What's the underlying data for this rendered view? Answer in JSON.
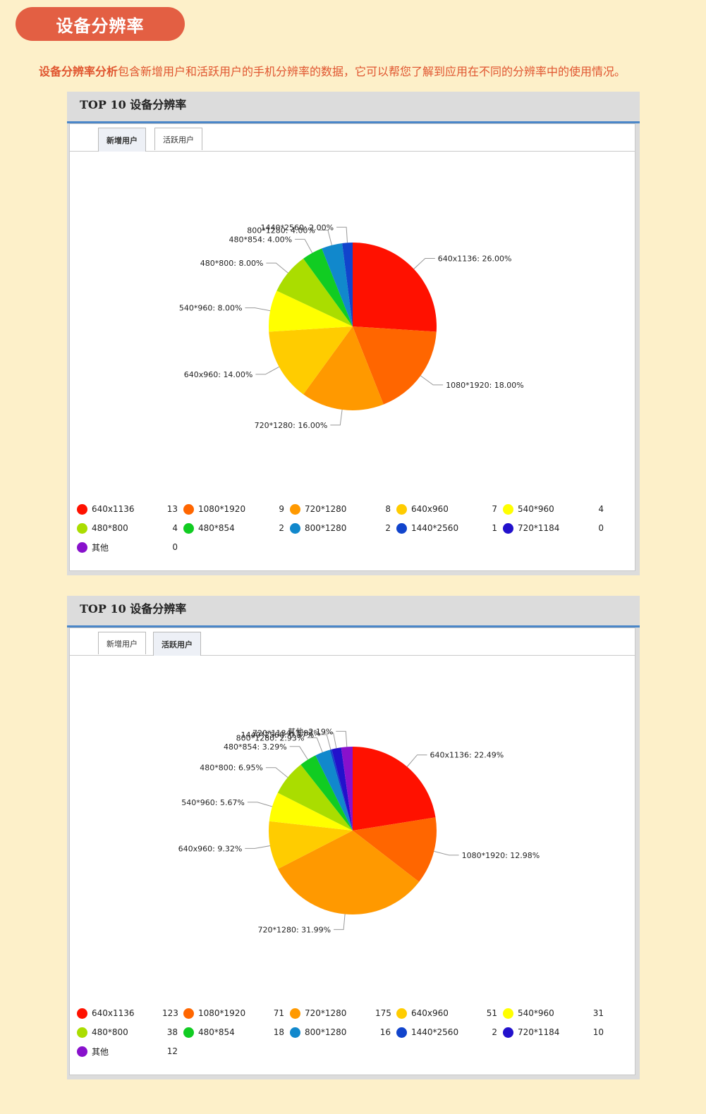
{
  "header": {
    "title": "设备分辨率"
  },
  "intro": {
    "highlight": "设备分辨率分析",
    "text": "包含新增用户和活跃用户的手机分辨率的数据，它可以帮您了解到应用在不同的分辨率中的使用情况。"
  },
  "colors": [
    "#ff1100",
    "#ff6600",
    "#ff9900",
    "#ffcc00",
    "#ffff00",
    "#aadd00",
    "#11cc22",
    "#1188cc",
    "#1144cc",
    "#2211cc",
    "#8811cc"
  ],
  "panels": [
    {
      "title": "TOP 10 设备分辨率",
      "tabs": [
        {
          "label": "新增用户",
          "active": true
        },
        {
          "label": "活跃用户",
          "active": false
        }
      ]
    },
    {
      "title": "TOP 10 设备分辨率",
      "tabs": [
        {
          "label": "新增用户",
          "active": false
        },
        {
          "label": "活跃用户",
          "active": true
        }
      ]
    }
  ],
  "chart_data": [
    {
      "type": "pie",
      "title": "",
      "slices": [
        {
          "name": "640x1136",
          "count": "13",
          "percent": 26.0,
          "label": "640x1136: 26.00%"
        },
        {
          "name": "1080*1920",
          "count": "9",
          "percent": 18.0,
          "label": "1080*1920: 18.00%"
        },
        {
          "name": "720*1280",
          "count": "8",
          "percent": 16.0,
          "label": "720*1280: 16.00%"
        },
        {
          "name": "640x960",
          "count": "7",
          "percent": 14.0,
          "label": "640x960: 14.00%"
        },
        {
          "name": "540*960",
          "count": "4",
          "percent": 8.0,
          "label": "540*960: 8.00%"
        },
        {
          "name": "480*800",
          "count": "4",
          "percent": 8.0,
          "label": "480*800: 8.00%"
        },
        {
          "name": "480*854",
          "count": "2",
          "percent": 4.0,
          "label": "480*854: 4.00%"
        },
        {
          "name": "800*1280",
          "count": "2",
          "percent": 4.0,
          "label": "800*1280: 4.00%"
        },
        {
          "name": "1440*2560",
          "count": "1",
          "percent": 2.0,
          "label": "1440*2560: 2.00%"
        },
        {
          "name": "720*1184",
          "count": "0",
          "percent": 0,
          "label": ""
        },
        {
          "name": "其他",
          "count": "0",
          "percent": 0,
          "label": ""
        }
      ]
    },
    {
      "type": "pie",
      "title": "",
      "slices": [
        {
          "name": "640x1136",
          "count": "123",
          "percent": 22.49,
          "label": "640x1136: 22.49%"
        },
        {
          "name": "1080*1920",
          "count": "71",
          "percent": 12.98,
          "label": "1080*1920: 12.98%"
        },
        {
          "name": "720*1280",
          "count": "175",
          "percent": 31.99,
          "label": "720*1280: 31.99%"
        },
        {
          "name": "640x960",
          "count": "51",
          "percent": 9.32,
          "label": "640x960: 9.32%"
        },
        {
          "name": "540*960",
          "count": "31",
          "percent": 5.67,
          "label": "540*960: 5.67%"
        },
        {
          "name": "480*800",
          "count": "38",
          "percent": 6.95,
          "label": "480*800: 6.95%"
        },
        {
          "name": "480*854",
          "count": "18",
          "percent": 3.29,
          "label": "480*854: 3.29%"
        },
        {
          "name": "800*1280",
          "count": "16",
          "percent": 2.93,
          "label": "800*1280: 2.93%"
        },
        {
          "name": "1440*2560",
          "count": "2",
          "percent": 0.37,
          "label": "1440*2560: 0.37%"
        },
        {
          "name": "720*1184",
          "count": "10",
          "percent": 1.83,
          "label": "720*1184: 1.83%"
        },
        {
          "name": "其他",
          "count": "12",
          "percent": 2.19,
          "label": "其他: 2.19%"
        }
      ]
    }
  ]
}
